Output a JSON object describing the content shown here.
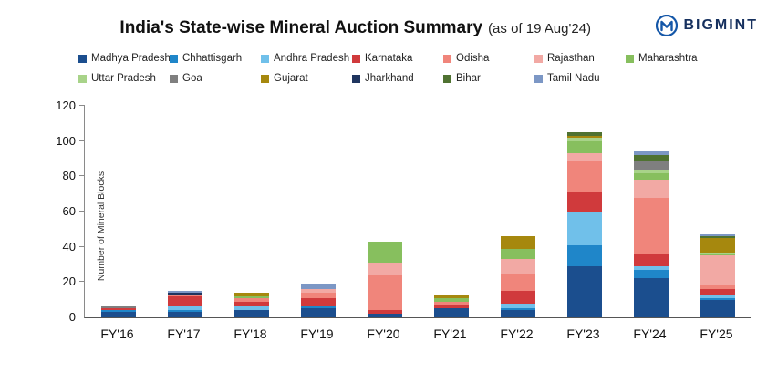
{
  "header": {
    "title": "India's State-wise Mineral Auction Summary",
    "subtitle": "(as of 19 Aug'24)",
    "brand": "BIGMINT"
  },
  "colors": {
    "brand_blue": "#1557a8",
    "brand_navy": "#16305e"
  },
  "chart_data": {
    "type": "bar",
    "stacked": true,
    "title": "India's State-wise Mineral Auction Summary (as of 19 Aug'24)",
    "xlabel": "",
    "ylabel": "Number of Mineral Blocks",
    "ylim": [
      0,
      120
    ],
    "yticks": [
      0,
      20,
      40,
      60,
      80,
      100,
      120
    ],
    "grid": false,
    "legend_position": "top",
    "categories": [
      "FY'16",
      "FY'17",
      "FY'18",
      "FY'19",
      "FY'20",
      "FY'21",
      "FY'22",
      "FY'23",
      "FY'24",
      "FY'25"
    ],
    "series": [
      {
        "name": "Madhya Pradesh",
        "color": "#1b4e8e",
        "values": [
          3,
          3,
          4,
          5,
          2,
          5,
          4,
          29,
          22,
          10
        ]
      },
      {
        "name": "Chhattisgarh",
        "color": "#1f86c9",
        "values": [
          1,
          1,
          0,
          1,
          0,
          0,
          1,
          12,
          5,
          1
        ]
      },
      {
        "name": "Andhra Pradesh",
        "color": "#70c0ea",
        "values": [
          0,
          2,
          2,
          1,
          0,
          0,
          3,
          19,
          2,
          2
        ]
      },
      {
        "name": "Karnataka",
        "color": "#d03a3c",
        "values": [
          1,
          6,
          3,
          4,
          2,
          2,
          7,
          11,
          7,
          3
        ]
      },
      {
        "name": "Odisha",
        "color": "#f0857b",
        "values": [
          0,
          1,
          2,
          3,
          20,
          2,
          10,
          18,
          32,
          2
        ]
      },
      {
        "name": "Rajasthan",
        "color": "#f2a9a4",
        "values": [
          0,
          0,
          0,
          2,
          7,
          0,
          8,
          4,
          10,
          17
        ]
      },
      {
        "name": "Maharashtra",
        "color": "#87bf5e",
        "values": [
          0,
          0,
          1,
          0,
          12,
          2,
          6,
          7,
          4,
          1
        ]
      },
      {
        "name": "Uttar Pradesh",
        "color": "#a8d389",
        "values": [
          0,
          0,
          0,
          0,
          0,
          0,
          0,
          2,
          2,
          1
        ]
      },
      {
        "name": "Goa",
        "color": "#7f7f7f",
        "values": [
          1,
          0,
          0,
          0,
          0,
          0,
          0,
          0,
          5,
          0
        ]
      },
      {
        "name": "Gujarat",
        "color": "#a6880e",
        "values": [
          0,
          0,
          2,
          0,
          0,
          2,
          7,
          1,
          0,
          8
        ]
      },
      {
        "name": "Jharkhand",
        "color": "#20355f",
        "values": [
          0,
          1,
          0,
          0,
          0,
          0,
          0,
          0,
          0,
          0
        ]
      },
      {
        "name": "Bihar",
        "color": "#4f7231",
        "values": [
          0,
          0,
          0,
          0,
          0,
          0,
          0,
          2,
          3,
          1
        ]
      },
      {
        "name": "Tamil Nadu",
        "color": "#7c97c5",
        "values": [
          0,
          1,
          0,
          3,
          0,
          0,
          0,
          0,
          2,
          1
        ]
      }
    ]
  }
}
